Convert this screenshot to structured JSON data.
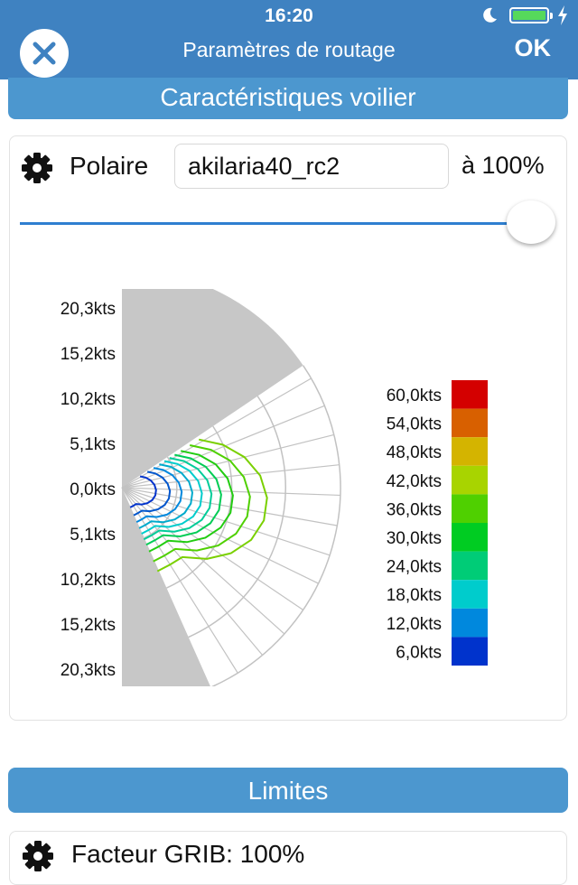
{
  "status": {
    "time": "16:20"
  },
  "nav": {
    "title": "Paramètres de routage",
    "ok_label": "OK"
  },
  "sections": {
    "boat": "Caractéristiques voilier",
    "limits": "Limites"
  },
  "polar": {
    "label": "Polaire",
    "value": "akilaria40_rc2",
    "percent_label": "à 100%",
    "percent": 100
  },
  "chart_data": {
    "type": "polar",
    "speed_labels_top": [
      "20,3kts",
      "15,2kts",
      "10,2kts",
      "5,1kts",
      "0,0kts"
    ],
    "speed_labels_bottom": [
      "5,1kts",
      "10,2kts",
      "15,2kts",
      "20,3kts"
    ],
    "r_max": 20.3,
    "grid_radii": [
      5.1,
      10.2,
      15.2,
      20.3
    ],
    "legend": [
      {
        "label": "60,0kts",
        "color": "#d40000"
      },
      {
        "label": "54,0kts",
        "color": "#d86000"
      },
      {
        "label": "48,0kts",
        "color": "#d4b400"
      },
      {
        "label": "42,0kts",
        "color": "#a8d400"
      },
      {
        "label": "36,0kts",
        "color": "#4fd000"
      },
      {
        "label": "30,0kts",
        "color": "#00cc22"
      },
      {
        "label": "24,0kts",
        "color": "#00cc77"
      },
      {
        "label": "18,0kts",
        "color": "#00cccc"
      },
      {
        "label": "12,0kts",
        "color": "#0088dd"
      },
      {
        "label": "6,0kts",
        "color": "#0033cc"
      }
    ]
  },
  "limits": {
    "grib_label": "Facteur GRIB: 100%"
  },
  "colors": {
    "nav": "#3f82c1",
    "section": "#4c97cf",
    "slider": "#2f7fd0"
  }
}
